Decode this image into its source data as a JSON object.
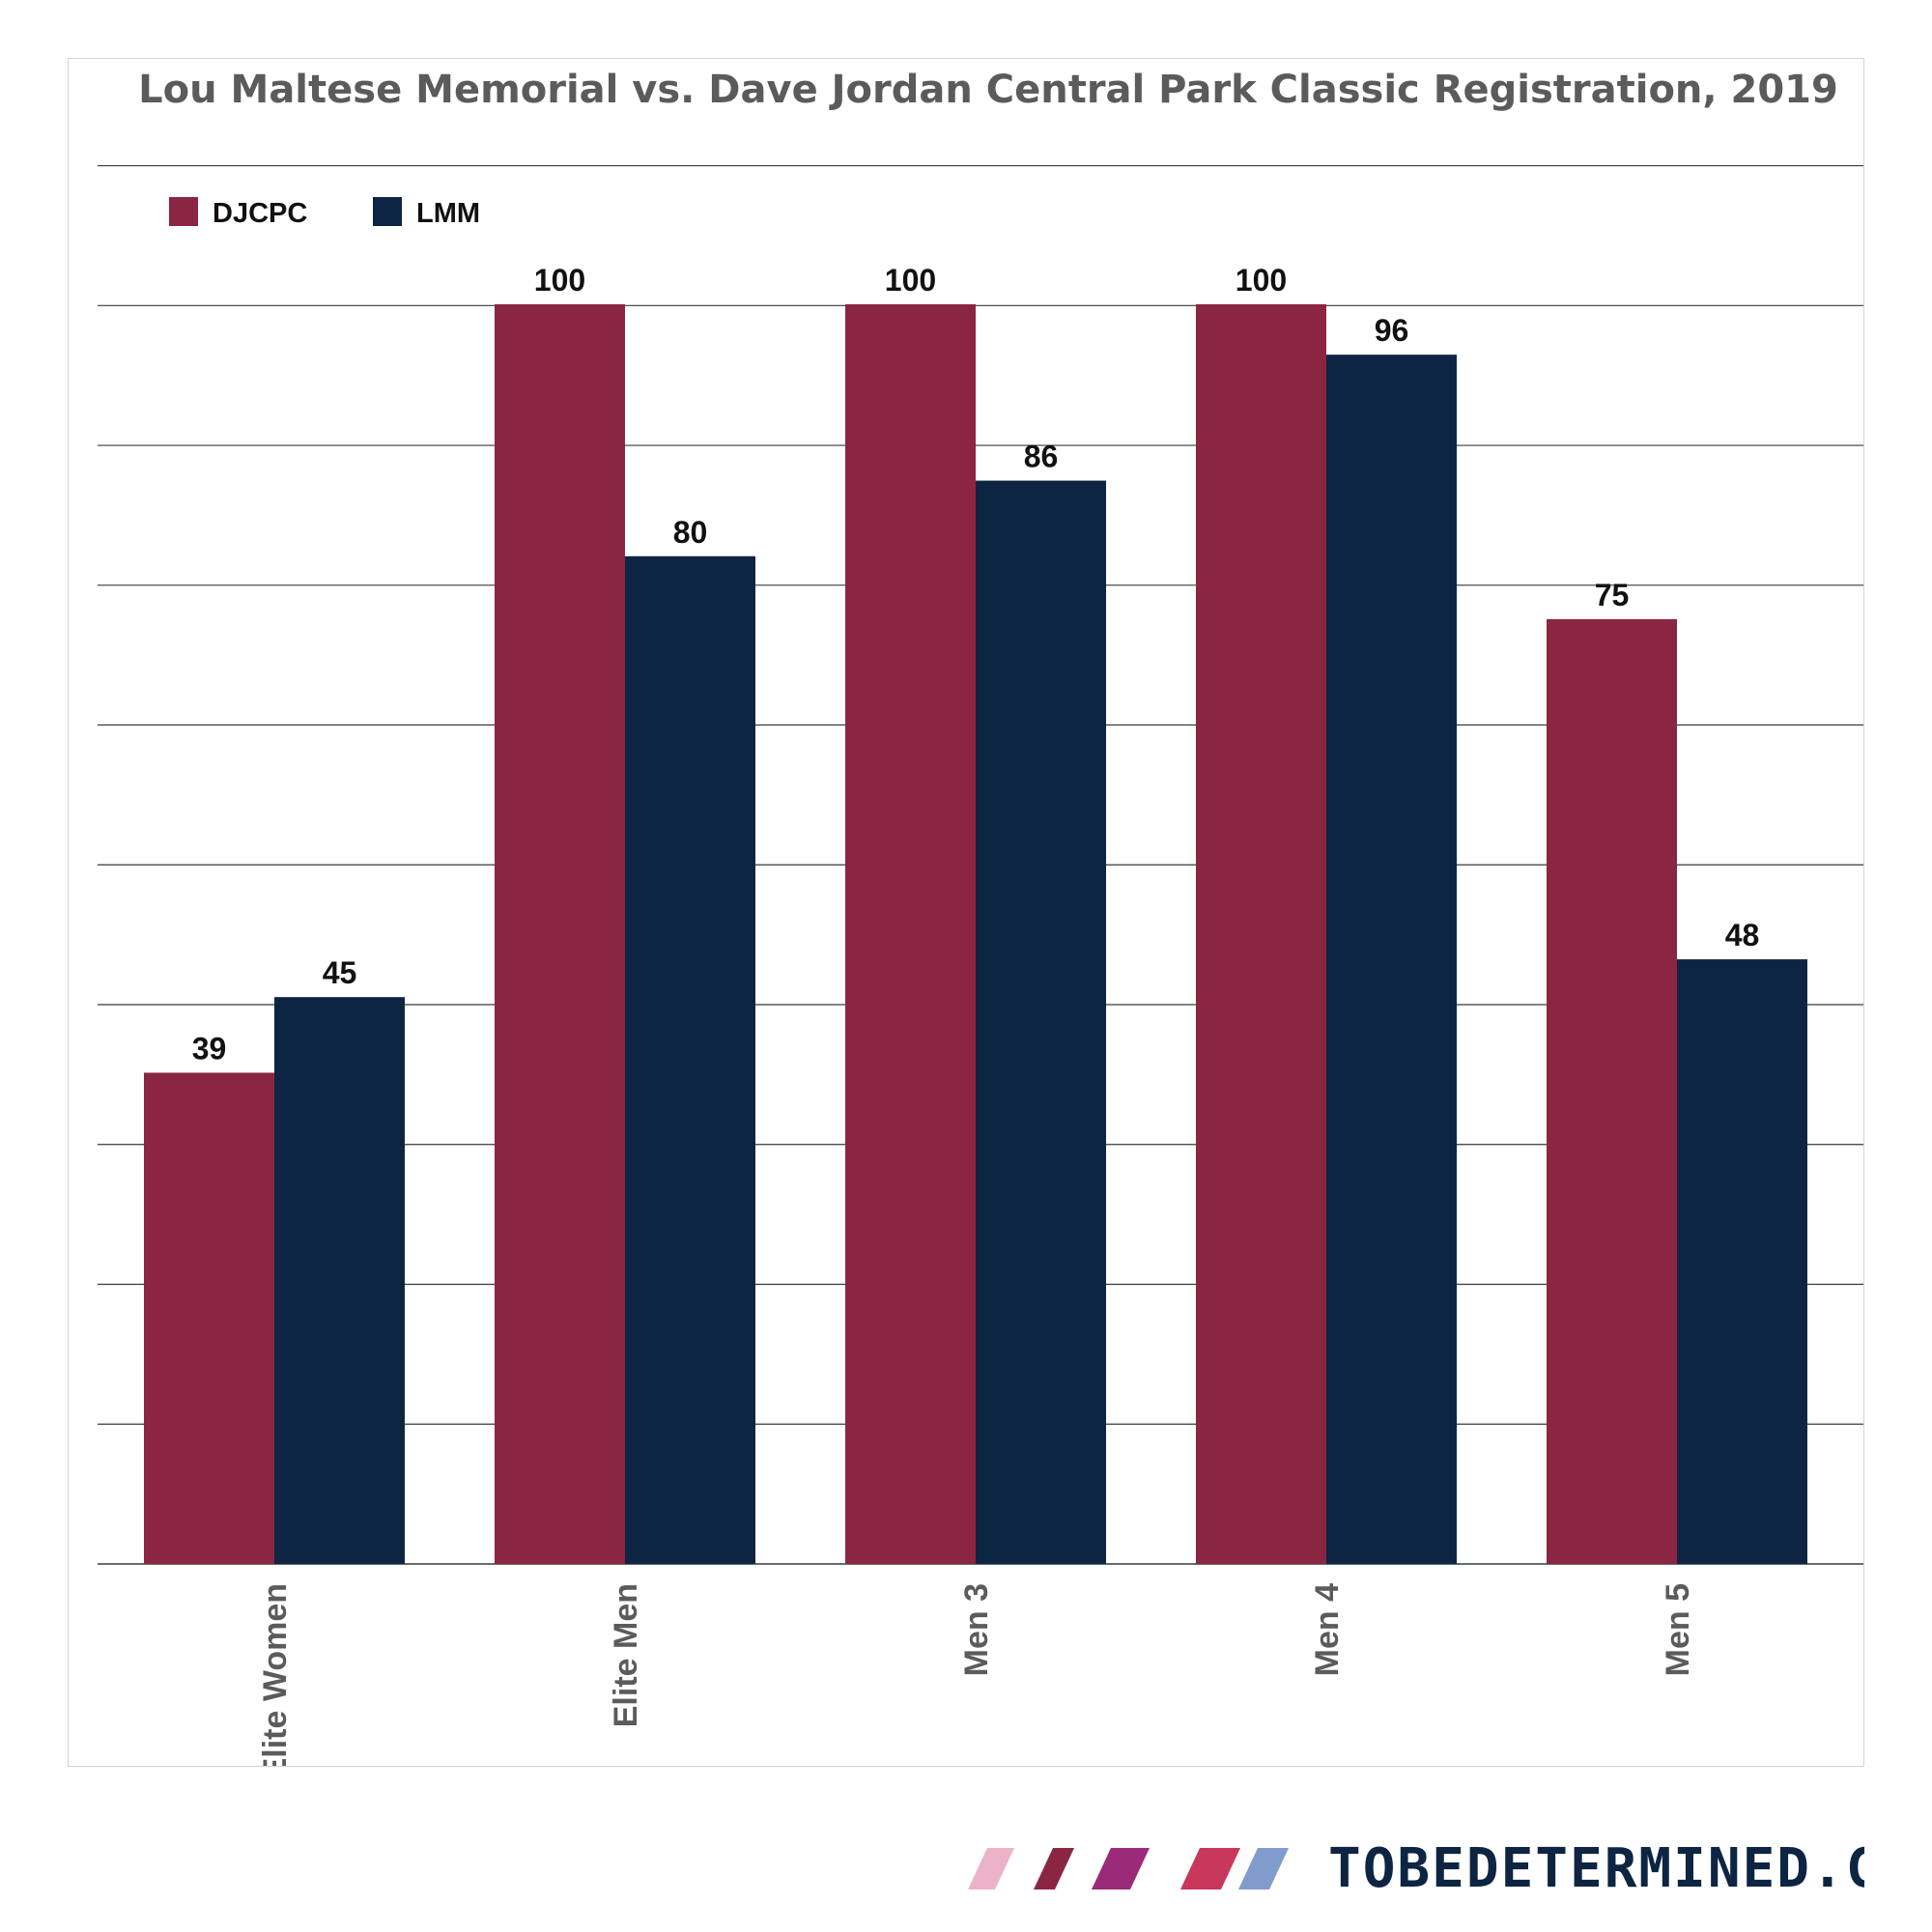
{
  "chart_data": {
    "type": "bar",
    "title": "Lou Maltese Memorial vs. Dave Jordan Central Park Classic Registration, 2019",
    "xlabel": "",
    "ylabel": "",
    "categories": [
      "Elite Women",
      "Elite Men",
      "Men 3",
      "Men 4",
      "Men 5"
    ],
    "series": [
      {
        "name": "DJCPC",
        "color": "#8b2642",
        "values": [
          39,
          100,
          100,
          100,
          75
        ]
      },
      {
        "name": "LMM",
        "color": "#0d2542",
        "values": [
          45,
          80,
          86,
          96,
          48
        ]
      }
    ],
    "ylim": [
      0,
      110
    ],
    "grid": true,
    "legend_position": "top-left",
    "data_labels": true
  },
  "branding": {
    "text": "TOBEDETERMINED.CC",
    "stripe_colors": [
      "#ecb3c8",
      "#8b2642",
      "#9b2a78",
      "#c9375a",
      "#7f9ccc"
    ]
  }
}
